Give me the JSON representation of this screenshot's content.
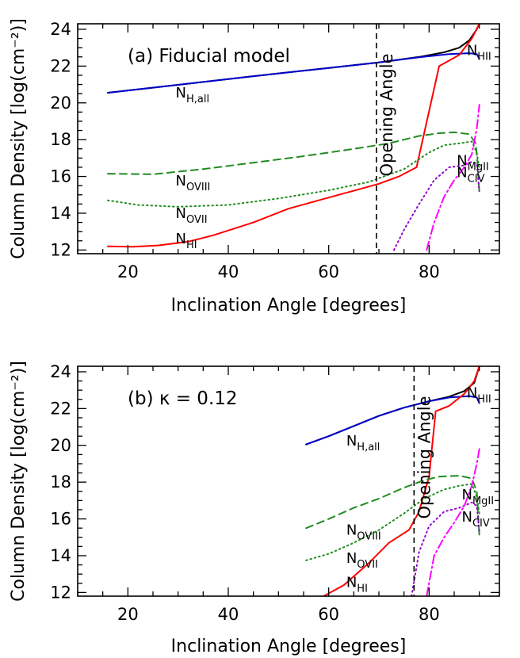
{
  "chart_data": [
    {
      "type": "line",
      "annotation": "(a) Fiducial model",
      "opening_angle": 69.5,
      "opening_angle_label": "Opening Angle",
      "xlabel": "Inclination Angle [degrees]",
      "ylabel": "Column Density [log(cm⁻²)]",
      "xlim": [
        10,
        94
      ],
      "ylim": [
        11.8,
        24.3
      ],
      "xticks": [
        20,
        40,
        60,
        80
      ],
      "yticks": [
        12,
        14,
        16,
        18,
        20,
        22,
        24
      ],
      "series": [
        {
          "name": "N_HII",
          "color": "#000000",
          "style": "solid",
          "points": [
            [
              16,
              20.55
            ],
            [
              30,
              20.98
            ],
            [
              45,
              21.45
            ],
            [
              60,
              21.9
            ],
            [
              70,
              22.2
            ],
            [
              78,
              22.5
            ],
            [
              83,
              22.75
            ],
            [
              86,
              23.0
            ],
            [
              88,
              23.4
            ],
            [
              89.5,
              24.0
            ],
            [
              90,
              24.3
            ]
          ]
        },
        {
          "name": "N_H,all",
          "color": "#0000cc",
          "style": "solid",
          "points": [
            [
              16,
              20.55
            ],
            [
              30,
              20.98
            ],
            [
              45,
              21.45
            ],
            [
              60,
              21.9
            ],
            [
              70,
              22.2
            ],
            [
              78,
              22.48
            ],
            [
              84,
              22.65
            ],
            [
              88,
              22.7
            ],
            [
              89.5,
              22.65
            ],
            [
              90,
              22.4
            ]
          ]
        },
        {
          "name": "N_HI",
          "color": "#ff0000",
          "style": "solid",
          "points": [
            [
              16,
              12.2
            ],
            [
              21,
              12.18
            ],
            [
              26,
              12.25
            ],
            [
              32,
              12.45
            ],
            [
              37,
              12.8
            ],
            [
              45,
              13.5
            ],
            [
              52,
              14.25
            ],
            [
              60,
              14.85
            ],
            [
              66,
              15.3
            ],
            [
              70,
              15.6
            ],
            [
              74,
              16.0
            ],
            [
              77.5,
              16.5
            ],
            [
              82,
              22.0
            ],
            [
              86,
              22.6
            ],
            [
              88.5,
              23.5
            ],
            [
              90,
              24.3
            ]
          ]
        },
        {
          "name": "N_OVIII",
          "color": "#228b22",
          "style": "dashed",
          "points": [
            [
              16,
              16.15
            ],
            [
              25,
              16.12
            ],
            [
              35,
              16.4
            ],
            [
              45,
              16.75
            ],
            [
              55,
              17.1
            ],
            [
              65,
              17.5
            ],
            [
              72,
              17.8
            ],
            [
              78,
              18.2
            ],
            [
              82,
              18.35
            ],
            [
              85,
              18.4
            ],
            [
              88,
              18.3
            ],
            [
              89.3,
              17.8
            ],
            [
              89.7,
              16.5
            ],
            [
              90,
              15.1
            ]
          ]
        },
        {
          "name": "N_OVII",
          "color": "#228b22",
          "style": "dotted",
          "points": [
            [
              16,
              14.7
            ],
            [
              22,
              14.45
            ],
            [
              30,
              14.35
            ],
            [
              40,
              14.45
            ],
            [
              50,
              14.8
            ],
            [
              60,
              15.25
            ],
            [
              68,
              15.7
            ],
            [
              75,
              16.4
            ],
            [
              80,
              17.3
            ],
            [
              83,
              17.7
            ],
            [
              86,
              17.8
            ],
            [
              88.5,
              17.9
            ],
            [
              89.5,
              17.3
            ],
            [
              90,
              16.4
            ]
          ]
        },
        {
          "name": "N_MgII",
          "color": "#9400d3",
          "style": "dotted",
          "points": [
            [
              73,
              12
            ],
            [
              75,
              13.1
            ],
            [
              78,
              14.5
            ],
            [
              81,
              15.8
            ],
            [
              84,
              16.5
            ],
            [
              87,
              16.6
            ],
            [
              88.5,
              16.8
            ],
            [
              89.5,
              16.7
            ],
            [
              90,
              15.2
            ]
          ]
        },
        {
          "name": "N_CIV",
          "color": "#ff00ff",
          "style": "dashdot",
          "points": [
            [
              79.5,
              12
            ],
            [
              81,
              13.5
            ],
            [
              83,
              14.9
            ],
            [
              85,
              15.8
            ],
            [
              87,
              16.5
            ],
            [
              88.5,
              17.2
            ],
            [
              89.5,
              18.6
            ],
            [
              90,
              19.9
            ]
          ]
        }
      ],
      "labels": [
        {
          "base": "N",
          "sub": "HII",
          "x": 87.5,
          "y": 22.6
        },
        {
          "base": "N",
          "sub": "H,all",
          "x": 29.5,
          "y": 20.3
        },
        {
          "base": "N",
          "sub": "OVIII",
          "x": 29.5,
          "y": 15.5
        },
        {
          "base": "N",
          "sub": "OVII",
          "x": 29.5,
          "y": 13.75
        },
        {
          "base": "N",
          "sub": "HI",
          "x": 29.5,
          "y": 12.35
        },
        {
          "base": "N",
          "sub": "MgII",
          "x": 85.5,
          "y": 16.6
        },
        {
          "base": "N",
          "sub": "CIV",
          "x": 85.5,
          "y": 15.95
        }
      ]
    },
    {
      "type": "line",
      "annotation": "(b) κ = 0.12",
      "opening_angle": 77,
      "opening_angle_label": "Opening Angle",
      "xlabel": "Inclination Angle [degrees]",
      "ylabel": "Column Density [log(cm⁻²)]",
      "xlim": [
        10,
        94
      ],
      "ylim": [
        11.8,
        24.3
      ],
      "xticks": [
        20,
        40,
        60,
        80
      ],
      "yticks": [
        12,
        14,
        16,
        18,
        20,
        22,
        24
      ],
      "series": [
        {
          "name": "N_HII",
          "color": "#000000",
          "style": "solid",
          "points": [
            [
              55.5,
              20.05
            ],
            [
              60,
              20.5
            ],
            [
              65,
              21.05
            ],
            [
              70,
              21.6
            ],
            [
              75,
              22.05
            ],
            [
              80,
              22.4
            ],
            [
              84,
              22.65
            ],
            [
              87,
              22.95
            ],
            [
              89,
              23.4
            ],
            [
              90,
              24.3
            ]
          ]
        },
        {
          "name": "N_H,all",
          "color": "#0000cc",
          "style": "solid",
          "points": [
            [
              55.5,
              20.05
            ],
            [
              60,
              20.5
            ],
            [
              65,
              21.05
            ],
            [
              70,
              21.6
            ],
            [
              75,
              22.05
            ],
            [
              80,
              22.4
            ],
            [
              84,
              22.6
            ],
            [
              88,
              22.68
            ],
            [
              89.5,
              22.6
            ],
            [
              90,
              22.3
            ]
          ]
        },
        {
          "name": "N_HI",
          "color": "#ff0000",
          "style": "solid",
          "points": [
            [
              59,
              11.8
            ],
            [
              63,
              12.4
            ],
            [
              68,
              13.6
            ],
            [
              72,
              14.7
            ],
            [
              76,
              15.4
            ],
            [
              78,
              16.4
            ],
            [
              80,
              18.3
            ],
            [
              81.3,
              21.85
            ],
            [
              84,
              22.15
            ],
            [
              87,
              22.8
            ],
            [
              89,
              23.5
            ],
            [
              90,
              24.3
            ]
          ]
        },
        {
          "name": "N_OVIII",
          "color": "#228b22",
          "style": "dashed",
          "points": [
            [
              55.5,
              15.5
            ],
            [
              60,
              16.0
            ],
            [
              65,
              16.6
            ],
            [
              70,
              17.1
            ],
            [
              75,
              17.7
            ],
            [
              79,
              18.1
            ],
            [
              82,
              18.3
            ],
            [
              86,
              18.35
            ],
            [
              88.5,
              18.2
            ],
            [
              89.5,
              17.5
            ],
            [
              90,
              15.1
            ]
          ]
        },
        {
          "name": "N_OVII",
          "color": "#228b22",
          "style": "dotted",
          "points": [
            [
              55.5,
              13.75
            ],
            [
              60,
              14.1
            ],
            [
              65,
              14.7
            ],
            [
              70,
              15.4
            ],
            [
              75,
              16.3
            ],
            [
              79,
              17.1
            ],
            [
              83,
              17.6
            ],
            [
              86,
              17.8
            ],
            [
              88.5,
              17.9
            ],
            [
              89.5,
              17.2
            ],
            [
              90,
              16.3
            ]
          ]
        },
        {
          "name": "N_MgII",
          "color": "#9400d3",
          "style": "dotted",
          "points": [
            [
              76.5,
              11.8
            ],
            [
              78,
              14.2
            ],
            [
              80,
              15.6
            ],
            [
              83,
              16.4
            ],
            [
              86,
              16.6
            ],
            [
              88.5,
              16.9
            ],
            [
              89.5,
              16.7
            ],
            [
              90,
              15.3
            ]
          ]
        },
        {
          "name": "N_CIV",
          "color": "#ff00ff",
          "style": "dashdot",
          "points": [
            [
              79.5,
              11.8
            ],
            [
              81,
              14.0
            ],
            [
              83,
              15.0
            ],
            [
              85,
              15.8
            ],
            [
              87,
              16.7
            ],
            [
              88.5,
              17.8
            ],
            [
              89.5,
              19.0
            ],
            [
              90,
              19.8
            ]
          ]
        }
      ],
      "labels": [
        {
          "base": "N",
          "sub": "HII",
          "x": 87.5,
          "y": 22.6
        },
        {
          "base": "N",
          "sub": "H,all",
          "x": 63.5,
          "y": 20.0
        },
        {
          "base": "N",
          "sub": "OVIII",
          "x": 63.5,
          "y": 15.15
        },
        {
          "base": "N",
          "sub": "OVII",
          "x": 63.5,
          "y": 13.6
        },
        {
          "base": "N",
          "sub": "HI",
          "x": 63.5,
          "y": 12.3
        },
        {
          "base": "N",
          "sub": "MgII",
          "x": 86.5,
          "y": 17.05
        },
        {
          "base": "N",
          "sub": "CIV",
          "x": 86.5,
          "y": 15.85
        }
      ]
    }
  ]
}
